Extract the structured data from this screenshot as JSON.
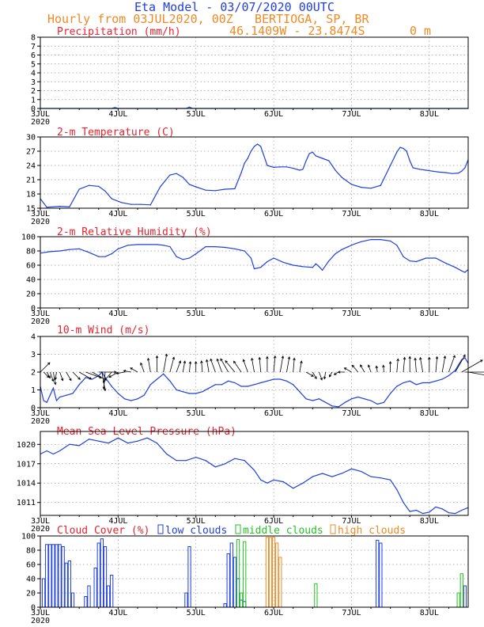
{
  "header": {
    "title": "Eta Model - 03/07/2020 00UTC",
    "subtitle": "Hourly from 03JUL2020, 00Z",
    "location": "BERTIOGA, SP, BR",
    "coords": "46.1409W - 23.8474S",
    "elevation": "0   m",
    "colors": {
      "title": "#1f3fe0",
      "subtitle": "#f08a24",
      "panel_title": "#e8222e"
    }
  },
  "x_axis": {
    "hours_total": 132,
    "ticks": [
      {
        "hour": 0,
        "label": "3JUL",
        "sub": "2020"
      },
      {
        "hour": 24,
        "label": "4JUL"
      },
      {
        "hour": 48,
        "label": "5JUL"
      },
      {
        "hour": 72,
        "label": "6JUL"
      },
      {
        "hour": 96,
        "label": "7JUL"
      },
      {
        "hour": 120,
        "label": "8JUL"
      }
    ]
  },
  "chart_data": [
    {
      "type": "area",
      "title": "Precipitation (mm/h)",
      "ylim": [
        0,
        8
      ],
      "yticks": [
        0,
        1,
        2,
        3,
        4,
        5,
        6,
        7,
        8
      ],
      "x": [
        0,
        22,
        23,
        24,
        45,
        46,
        47,
        132
      ],
      "values": [
        0,
        0,
        0.1,
        0,
        0,
        0.15,
        0,
        0
      ]
    },
    {
      "type": "line",
      "title": "2-m Temperature (C)",
      "ylim": [
        15,
        30
      ],
      "yticks": [
        15,
        18,
        21,
        24,
        27,
        30
      ],
      "x": [
        0,
        2,
        6,
        9,
        12,
        15,
        18,
        20,
        22,
        25,
        28,
        31,
        34,
        37,
        40,
        42,
        44,
        46,
        48,
        51,
        54,
        57,
        60,
        62,
        63,
        64,
        65,
        66,
        67,
        68,
        70,
        72,
        74,
        76,
        78,
        80,
        81,
        82,
        83,
        84,
        85,
        87,
        89,
        91,
        93,
        96,
        99,
        102,
        105,
        108,
        110,
        111,
        112,
        113,
        114,
        115,
        117,
        119,
        121,
        123,
        125,
        127,
        129,
        130,
        131,
        132
      ],
      "values": [
        17,
        15.2,
        15.4,
        15.3,
        19,
        19.8,
        19.6,
        18.6,
        17,
        16.2,
        15.8,
        15.8,
        15.7,
        19.5,
        22,
        22.3,
        21.5,
        20,
        19.5,
        18.8,
        18.7,
        19,
        19.1,
        22.5,
        24.5,
        25.5,
        27,
        28,
        28.5,
        28,
        24,
        23.6,
        23.7,
        23.7,
        23.4,
        23,
        23.2,
        25,
        26.5,
        26.8,
        26,
        25.5,
        25,
        23,
        21.5,
        20,
        19.4,
        19.2,
        19.8,
        24,
        26.8,
        27.8,
        27.6,
        27,
        25,
        23.5,
        23.2,
        23,
        22.8,
        22.6,
        22.5,
        22.3,
        22.4,
        22.8,
        23.5,
        25.2
      ]
    },
    {
      "type": "line",
      "title": "2-m Relative Humidity (%)",
      "ylim": [
        0,
        100
      ],
      "yticks": [
        0,
        20,
        40,
        60,
        80,
        100
      ],
      "x": [
        0,
        3,
        6,
        9,
        12,
        15,
        18,
        20,
        22,
        24,
        27,
        30,
        33,
        36,
        38,
        40,
        42,
        44,
        46,
        48,
        51,
        54,
        57,
        60,
        63,
        65,
        66,
        68,
        70,
        72,
        75,
        78,
        81,
        84,
        85,
        86,
        87,
        89,
        91,
        93,
        95,
        97,
        99,
        102,
        105,
        108,
        110,
        112,
        114,
        116,
        119,
        122,
        125,
        128,
        130,
        131,
        132
      ],
      "values": [
        77,
        79,
        80,
        82,
        83,
        78,
        72,
        72,
        76,
        83,
        88,
        89,
        89,
        89,
        88,
        86,
        72,
        68,
        70,
        76,
        86,
        86,
        85,
        83,
        80,
        70,
        55,
        57,
        65,
        70,
        64,
        60,
        58,
        57,
        62,
        58,
        53,
        66,
        76,
        82,
        86,
        90,
        93,
        96,
        96,
        94,
        88,
        72,
        66,
        65,
        70,
        70,
        63,
        57,
        52,
        50,
        54
      ]
    },
    {
      "type": "line",
      "title": "10-m Wind (m/s)",
      "ylim": [
        0,
        4
      ],
      "yticks": [
        0,
        1,
        2,
        3,
        4
      ],
      "arrow_row": 2,
      "x": [
        0,
        1,
        2,
        3,
        4,
        5,
        6,
        8,
        10,
        12,
        14,
        16,
        18,
        19,
        20,
        22,
        24,
        26,
        28,
        30,
        32,
        34,
        36,
        38,
        40,
        42,
        44,
        46,
        48,
        50,
        52,
        54,
        56,
        58,
        60,
        62,
        64,
        66,
        68,
        70,
        72,
        74,
        76,
        78,
        80,
        82,
        84,
        86,
        88,
        90,
        92,
        94,
        96,
        98,
        100,
        102,
        104,
        106,
        108,
        110,
        112,
        114,
        116,
        118,
        120,
        122,
        124,
        126,
        128,
        130,
        131,
        132
      ],
      "values": [
        1.2,
        0.4,
        0.3,
        0.7,
        1.1,
        0.4,
        0.6,
        0.7,
        0.8,
        1.3,
        1.7,
        1.6,
        1.8,
        2.0,
        1.7,
        1.2,
        0.8,
        0.5,
        0.4,
        0.5,
        0.7,
        1.3,
        1.6,
        1.9,
        1.5,
        1.0,
        0.9,
        0.8,
        0.8,
        0.9,
        1.1,
        1.3,
        1.3,
        1.5,
        1.4,
        1.2,
        1.2,
        1.3,
        1.4,
        1.5,
        1.6,
        1.6,
        1.5,
        1.3,
        0.9,
        0.5,
        0.4,
        0.5,
        0.3,
        0.1,
        0.05,
        0.3,
        0.5,
        0.6,
        0.5,
        0.4,
        0.2,
        0.3,
        0.8,
        1.2,
        1.4,
        1.5,
        1.3,
        1.4,
        1.4,
        1.5,
        1.6,
        1.8,
        2.1,
        2.7,
        2.8,
        2.5
      ],
      "directions_deg": [
        135,
        45,
        30,
        20,
        10,
        350,
        20,
        30,
        45,
        60,
        70,
        60,
        90,
        10,
        355,
        320,
        300,
        280,
        260,
        240,
        200,
        190,
        180,
        170,
        165,
        160,
        170,
        175,
        180,
        185,
        190,
        200,
        200,
        210,
        220,
        215,
        200,
        190,
        185,
        180,
        175,
        170,
        170,
        175,
        170,
        60,
        30,
        20,
        350,
        330,
        300,
        270,
        240,
        220,
        210,
        200,
        190,
        185,
        180,
        175,
        175,
        180,
        185,
        190,
        180,
        175,
        170,
        160,
        150,
        120,
        90,
        80
      ]
    },
    {
      "type": "line",
      "title": "Mean Sea Level Pressure (hPa)",
      "ylim": [
        1009,
        1022
      ],
      "yticks": [
        1011,
        1014,
        1017,
        1020
      ],
      "x": [
        0,
        2,
        4,
        6,
        9,
        12,
        15,
        18,
        21,
        24,
        27,
        30,
        33,
        36,
        39,
        42,
        45,
        48,
        51,
        54,
        57,
        60,
        63,
        66,
        68,
        70,
        72,
        75,
        78,
        81,
        84,
        87,
        90,
        93,
        96,
        99,
        102,
        105,
        108,
        110,
        112,
        114,
        116,
        118,
        120,
        122,
        124,
        126,
        128,
        130,
        132
      ],
      "values": [
        1018.5,
        1019,
        1018.5,
        1019,
        1020,
        1019.8,
        1020.8,
        1020.5,
        1020.2,
        1021,
        1020.2,
        1020.5,
        1021,
        1020.2,
        1018.5,
        1017.5,
        1017.5,
        1018,
        1017.5,
        1016.5,
        1017,
        1017.8,
        1017.5,
        1016,
        1014.5,
        1014,
        1014.5,
        1014.2,
        1013.2,
        1014,
        1015,
        1015.5,
        1015,
        1015.5,
        1016.2,
        1015.8,
        1015,
        1014.8,
        1014.5,
        1013,
        1011,
        1009.6,
        1009.8,
        1009.3,
        1009.5,
        1010.3,
        1010,
        1009.4,
        1009.3,
        1009.8,
        1010.2
      ]
    },
    {
      "type": "bar",
      "title": "Cloud Cover (%)",
      "ylim": [
        0,
        100
      ],
      "yticks": [
        0,
        20,
        40,
        60,
        80,
        100
      ],
      "legend": [
        {
          "label": "low clouds",
          "color": "#1f3fe0"
        },
        {
          "label": "middle clouds",
          "color": "#22c322"
        },
        {
          "label": "high clouds",
          "color": "#f08a24"
        }
      ],
      "series": [
        {
          "name": "low clouds",
          "hours": [
            1,
            2,
            3,
            4,
            5,
            6,
            7,
            8,
            9,
            10,
            14,
            15,
            17,
            18,
            19,
            20,
            21,
            22,
            45,
            46,
            57,
            58,
            59,
            60,
            61,
            62,
            63,
            104,
            105,
            131
          ],
          "values": [
            40,
            88,
            88,
            88,
            88,
            88,
            85,
            62,
            65,
            20,
            15,
            30,
            55,
            90,
            96,
            85,
            30,
            45,
            20,
            85,
            5,
            75,
            90,
            70,
            40,
            10,
            8,
            94,
            90,
            30
          ]
        },
        {
          "name": "middle clouds",
          "hours": [
            61,
            62,
            63,
            85,
            129,
            130
          ],
          "values": [
            95,
            20,
            92,
            33,
            20,
            47
          ]
        },
        {
          "name": "high clouds",
          "hours": [
            70,
            71,
            72,
            73,
            74
          ],
          "values": [
            98,
            98,
            98,
            90,
            70
          ]
        }
      ]
    }
  ]
}
